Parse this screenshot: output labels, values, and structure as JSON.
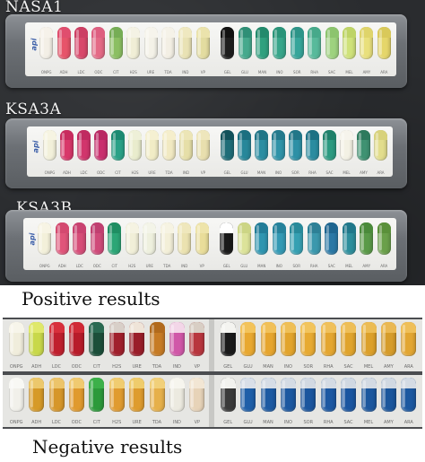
{
  "strips": [
    {
      "label": "NASA1",
      "brand": "api",
      "codes": [
        "ONPG",
        "ADH",
        "LDC",
        "ODC",
        "CIT",
        "H2S",
        "URE",
        "TDA",
        "IND",
        "VP",
        "GEL",
        "GLU",
        "MAN",
        "INO",
        "SOR",
        "RHA",
        "SAC",
        "MEL",
        "AMY",
        "ARA"
      ],
      "wells": [
        "#f3efe6",
        "#e7546a",
        "#d8486a",
        "#e46a86",
        "#8bbf62",
        "#f0eed6",
        "#f4f2e8",
        "#f3efe4",
        "#e9e2b4",
        "#e3dca0",
        "#1e1e1e",
        "#46a98d",
        "#2fa07e",
        "#37a58a",
        "#36a59a",
        "#58ba9b",
        "#9ed27f",
        "#cfe27a",
        "#e9e07c",
        "#e5d66a"
      ],
      "caps": [
        "#f6f2ea",
        "#e04e6e",
        "#cc3f63",
        "#de5f80",
        "#76ad55",
        "#f4f2e4",
        "#f6f4ec",
        "#f5f2e8",
        "#efe8c0",
        "#ebe3ac",
        "#111111",
        "#2f8f76",
        "#238a6c",
        "#2a9479",
        "#2d9488",
        "#46a98a",
        "#8cc46e",
        "#bed466",
        "#dfd46a",
        "#d9c95a"
      ]
    },
    {
      "label": "KSA3A",
      "brand": "api",
      "codes": [
        "ONPG",
        "ADH",
        "LDC",
        "ODC",
        "CIT",
        "H2S",
        "URE",
        "TDA",
        "IND",
        "VP",
        "GEL",
        "GLU",
        "MAN",
        "INO",
        "SOR",
        "RHA",
        "SAC",
        "MEL",
        "AMY",
        "ARA"
      ],
      "wells": [
        "#f2f0da",
        "#d8376a",
        "#d1356c",
        "#c9306e",
        "#2aa187",
        "#e9eccd",
        "#f1ecc6",
        "#f1e9c2",
        "#e6dfa8",
        "#e8dfae",
        "#1f6d78",
        "#27879a",
        "#2b8da2",
        "#2f93a8",
        "#2d90a6",
        "#2a8ca0",
        "#2c9a80",
        "#f3f1e4",
        "#3f9272",
        "#e2dd8c"
      ],
      "caps": [
        "#f6f4e2",
        "#c82c5e",
        "#c02a60",
        "#b92962",
        "#1c8a72",
        "#eef0d8",
        "#f5f0d2",
        "#f5eecc",
        "#ece5b6",
        "#eee6bc",
        "#12515a",
        "#1b6f80",
        "#207586",
        "#247a8c",
        "#217688",
        "#1e7184",
        "#1f806a",
        "#f6f4ec",
        "#2e7a5d",
        "#d8d27c"
      ]
    },
    {
      "label": "KSA3B",
      "brand": "api",
      "codes": [
        "ONPG",
        "ADH",
        "LDC",
        "ODC",
        "CIT",
        "H2S",
        "URE",
        "TDA",
        "IND",
        "VP",
        "GEL",
        "GLU",
        "MAN",
        "INO",
        "SOR",
        "RHA",
        "SAC",
        "MEL",
        "AMY",
        "ARA"
      ],
      "wells": [
        "#f3f0da",
        "#e0557a",
        "#d64d78",
        "#cf4a79",
        "#2ca676",
        "#f1efd8",
        "#eef0de",
        "#f3efd8",
        "#ebe2b0",
        "#e9dd9a",
        "#1a1a1a",
        "#dce39a",
        "#2f95b0",
        "#3399b4",
        "#36a0b2",
        "#3b98ad",
        "#2a78a5",
        "#2d8e9c",
        "#5a9a48",
        "#6aa04a"
      ],
      "caps": [
        "#f7f4e4",
        "#d44a70",
        "#c94270",
        "#c03f70",
        "#1f8e62",
        "#f5f3e2",
        "#f3f4e8",
        "#f6f3e2",
        "#efe7bc",
        "#eee4aa",
        "#ffffff",
        "#ccd585",
        "#237d98",
        "#26829b",
        "#288a9a",
        "#2d8096",
        "#1f6690",
        "#21788a",
        "#4a8a3a",
        "#5a903a"
      ]
    }
  ],
  "captions": {
    "positive": "Positive results",
    "negative": "Negative results"
  },
  "reference_rows": [
    {
      "name": "positive",
      "wells": [
        "#f0eddc",
        "#c8d84a",
        "#c0202e",
        "#b81c2a",
        "#1c4f3a",
        "#a0202c",
        "#9a1e2a",
        "#c67b25",
        "#d058a8",
        "#b8363e",
        "#1a1a1a",
        "#e8a830",
        "#e6a52e",
        "#e2a42c",
        "#e7aa32",
        "#e4a630",
        "#e0a42c",
        "#dca02a",
        "#d69c2a",
        "#e2a632"
      ],
      "caps": [
        "#f7f5ea",
        "#dfe86a",
        "#d8303c",
        "#d02a36",
        "#2a6a52",
        "#d8cfc8",
        "#efe4d8",
        "#b16a1c",
        "#f3d6e8",
        "#d8cec4",
        "#f4f4f0",
        "#f3c35a",
        "#f1c058",
        "#efbf56",
        "#f2c45c",
        "#f0c05a",
        "#eebe56",
        "#ecbc54",
        "#eab852",
        "#efbf58"
      ],
      "codes": [
        "ONPG",
        "ADH",
        "LDC",
        "ODC",
        "CIT",
        "H2S",
        "URE",
        "TDA",
        "IND",
        "VP",
        "GEL",
        "GLU",
        "MAN",
        "INO",
        "SOR",
        "RHA",
        "SAC",
        "MEL",
        "AMY",
        "ARA"
      ]
    },
    {
      "name": "negative",
      "wells": [
        "#f1f0ea",
        "#d69a28",
        "#d6962a",
        "#e09a2e",
        "#2c9a3a",
        "#e09b30",
        "#de9c2e",
        "#e6b04a",
        "#eceae0",
        "#e7d3b8",
        "#3a3a3a",
        "#1f5fa8",
        "#1d5aa2",
        "#1c58a0",
        "#1b569e",
        "#1c58a2",
        "#1a55a0",
        "#1c579e",
        "#1b569c",
        "#1c58a0"
      ],
      "caps": [
        "#f8f8f4",
        "#ecc86c",
        "#ecc46a",
        "#f0ca70",
        "#3cb04a",
        "#f0cc70",
        "#efcc6c",
        "#f1d07a",
        "#f6f5ee",
        "#f2e6d4",
        "#f2f2ee",
        "#d9dfe8",
        "#d6dde6",
        "#d4dbe4",
        "#d2d9e2",
        "#d4dbe4",
        "#d0d8e2",
        "#d3dae3",
        "#d1d9e2",
        "#d4dbe4"
      ],
      "codes": [
        "ONPG",
        "ADH",
        "LDC",
        "ODC",
        "CIT",
        "H2S",
        "URE",
        "TDA",
        "IND",
        "VP",
        "GEL",
        "GLU",
        "MAN",
        "INO",
        "SOR",
        "RHA",
        "SAC",
        "MEL",
        "AMY",
        "ARA"
      ]
    }
  ]
}
